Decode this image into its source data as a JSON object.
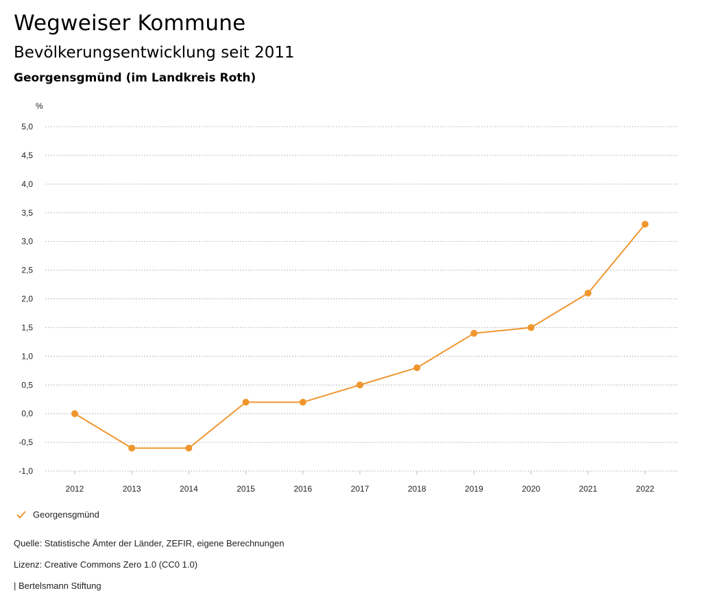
{
  "header": {
    "title": "Wegweiser Kommune",
    "subtitle": "Bevölkerungsentwicklung seit 2011",
    "municipality": "Georgensgmünd (im Landkreis Roth)"
  },
  "colors": {
    "series": "#f0962e",
    "grid": "#bbbbbb",
    "text": "#222222"
  },
  "chart_data": {
    "type": "line",
    "title": "Bevölkerungsentwicklung seit 2011",
    "subtitle": "Georgensgmünd (im Landkreis Roth)",
    "y_unit": "%",
    "xlabel": "",
    "ylabel": "%",
    "x": [
      "2012",
      "2013",
      "2014",
      "2015",
      "2016",
      "2017",
      "2018",
      "2019",
      "2020",
      "2021",
      "2022"
    ],
    "series": [
      {
        "name": "Georgensgmünd",
        "color": "#f0962e",
        "values": [
          0.0,
          -0.6,
          -0.6,
          0.2,
          0.2,
          0.5,
          0.8,
          1.4,
          1.5,
          2.1,
          3.3
        ]
      }
    ],
    "ylim": [
      -1.0,
      5.0
    ],
    "yticks": [
      5.0,
      4.5,
      4.0,
      3.5,
      3.0,
      2.5,
      2.0,
      1.5,
      1.0,
      0.5,
      0.0,
      -0.5,
      -1.0
    ],
    "ytick_labels": [
      "5,0",
      "4,5",
      "4,0",
      "3,5",
      "3,0",
      "2,5",
      "2,0",
      "1,5",
      "1,0",
      "0,5",
      "0,0",
      "-0,5",
      "-1,0"
    ],
    "grid": true,
    "grid_style": "dotted",
    "legend_position": "bottom-left"
  },
  "legend": {
    "icon": "check-icon",
    "label": "Georgensgmünd"
  },
  "footer": {
    "source": "Quelle: Statistische Ämter der Länder, ZEFIR, eigene Berechnungen",
    "license": "Lizenz: Creative Commons Zero 1.0 (CC0 1.0)",
    "publisher": "| Bertelsmann Stiftung"
  }
}
